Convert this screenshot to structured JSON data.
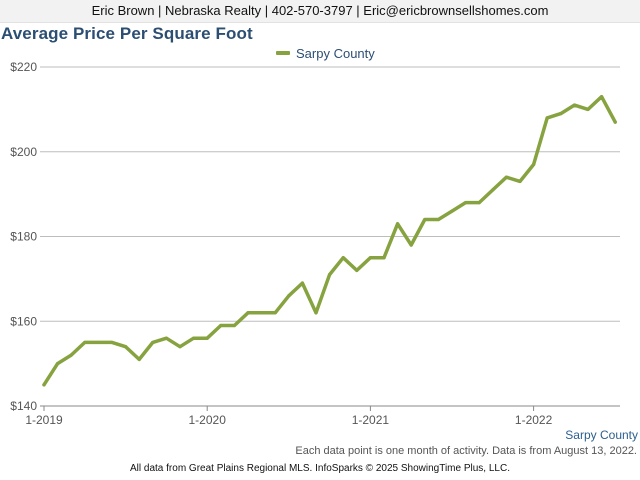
{
  "header": {
    "contact": "Eric Brown | Nebraska Realty | 402-570-3797 | Eric@ericbrownsellshomes.com"
  },
  "chart_data": {
    "type": "line",
    "title": "Average Price Per Square Foot",
    "xlabel": "",
    "ylabel": "",
    "x_tick_labels": [
      "1-2019",
      "1-2020",
      "1-2021",
      "1-2022"
    ],
    "y_tick_labels": [
      "$140",
      "$160",
      "$180",
      "$200",
      "$220"
    ],
    "ylim": [
      140,
      220
    ],
    "grid": "horizontal",
    "legend": "top-center",
    "x": [
      "2019-01",
      "2019-02",
      "2019-03",
      "2019-04",
      "2019-05",
      "2019-06",
      "2019-07",
      "2019-08",
      "2019-09",
      "2019-10",
      "2019-11",
      "2019-12",
      "2020-01",
      "2020-02",
      "2020-03",
      "2020-04",
      "2020-05",
      "2020-06",
      "2020-07",
      "2020-08",
      "2020-09",
      "2020-10",
      "2020-11",
      "2020-12",
      "2021-01",
      "2021-02",
      "2021-03",
      "2021-04",
      "2021-05",
      "2021-06",
      "2021-07",
      "2021-08",
      "2021-09",
      "2021-10",
      "2021-11",
      "2021-12",
      "2022-01",
      "2022-02",
      "2022-03",
      "2022-04",
      "2022-05",
      "2022-06",
      "2022-07"
    ],
    "series": [
      {
        "name": "Sarpy County",
        "color": "#86a340",
        "values": [
          145,
          150,
          152,
          155,
          155,
          155,
          154,
          151,
          155,
          156,
          154,
          156,
          156,
          159,
          159,
          162,
          162,
          162,
          166,
          169,
          162,
          171,
          175,
          172,
          175,
          175,
          183,
          178,
          184,
          184,
          186,
          188,
          188,
          191,
          194,
          193,
          197,
          208,
          209,
          211,
          210,
          213,
          207
        ]
      }
    ]
  },
  "series_label": "Sarpy County",
  "note": "Each data point is one month of activity. Data is from August 13, 2022.",
  "footer": "All data from Great Plains Regional MLS. InfoSparks © 2025 ShowingTime Plus, LLC."
}
